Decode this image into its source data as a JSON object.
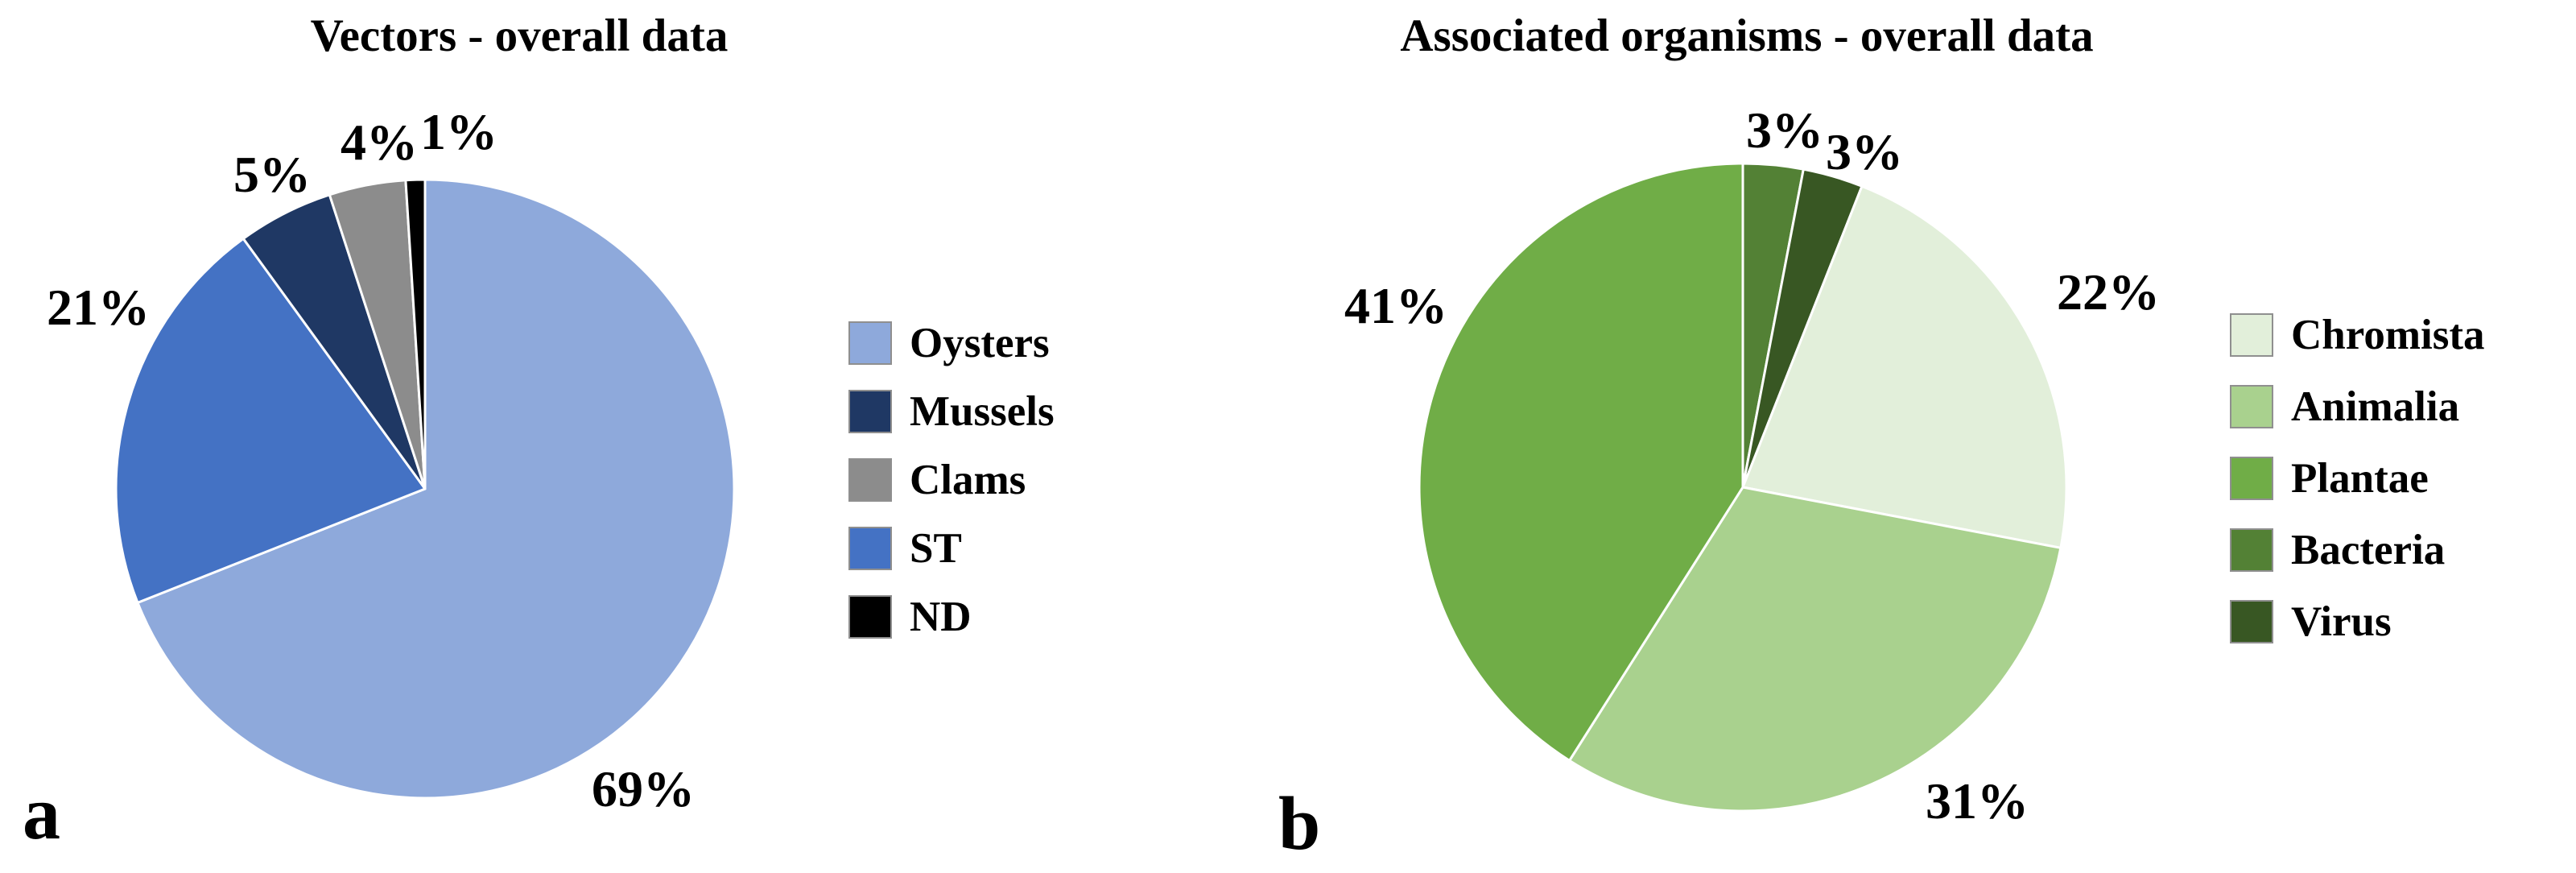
{
  "figure": {
    "background": "#ffffff"
  },
  "chart_data": [
    {
      "type": "pie",
      "panel_letter": "a",
      "title": "Vectors - overall data",
      "start_angle_deg": 0,
      "direction": "clockwise",
      "legend_position": "right",
      "grid": false,
      "slices": [
        {
          "label": "Oysters",
          "value": 69,
          "pct_label": "69%",
          "color": "#8EA9DB",
          "label_angle_deg": 144.0,
          "label_radius": 1.2
        },
        {
          "label": "ST",
          "value": 21,
          "pct_label": "21%",
          "color": "#4472C4",
          "label_angle_deg": 299.0,
          "label_radius": 1.21
        },
        {
          "label": "Mussels",
          "value": 5,
          "pct_label": "5%",
          "color": "#1F3864",
          "label_angle_deg": 334.0,
          "label_radius": 1.13
        },
        {
          "label": "Clams",
          "value": 4,
          "pct_label": "4%",
          "color": "#8C8C8C",
          "label_angle_deg": 352.5,
          "label_radius": 1.13
        },
        {
          "label": "ND",
          "value": 1,
          "pct_label": "1%",
          "color": "#000000",
          "label_angle_deg": 5.4,
          "label_radius": 1.16
        }
      ],
      "legend_order": [
        "Oysters",
        "Mussels",
        "Clams",
        "ST",
        "ND"
      ]
    },
    {
      "type": "pie",
      "panel_letter": "b",
      "title": "Associated organisms - overall data",
      "start_angle_deg": 0,
      "direction": "clockwise",
      "legend_position": "right",
      "grid": false,
      "slices": [
        {
          "label": "Bacteria",
          "value": 3,
          "pct_label": "3%",
          "color": "#538135",
          "label_angle_deg": 6.7,
          "label_radius": 1.11
        },
        {
          "label": "Virus",
          "value": 3,
          "pct_label": "3%",
          "color": "#385723",
          "label_angle_deg": 19.9,
          "label_radius": 1.1
        },
        {
          "label": "Chromista",
          "value": 22,
          "pct_label": "22%",
          "color": "#E2EFDA",
          "label_angle_deg": 62.0,
          "label_radius": 1.28
        },
        {
          "label": "Animalia",
          "value": 31,
          "pct_label": "31%",
          "color": "#A9D18E",
          "label_angle_deg": 143.3,
          "label_radius": 1.21
        },
        {
          "label": "Plantae",
          "value": 41,
          "pct_label": "41%",
          "color": "#70AD47",
          "label_angle_deg": 297.5,
          "label_radius": 1.21
        }
      ],
      "legend_order": [
        "Chromista",
        "Animalia",
        "Plantae",
        "Bacteria",
        "Virus"
      ]
    }
  ]
}
